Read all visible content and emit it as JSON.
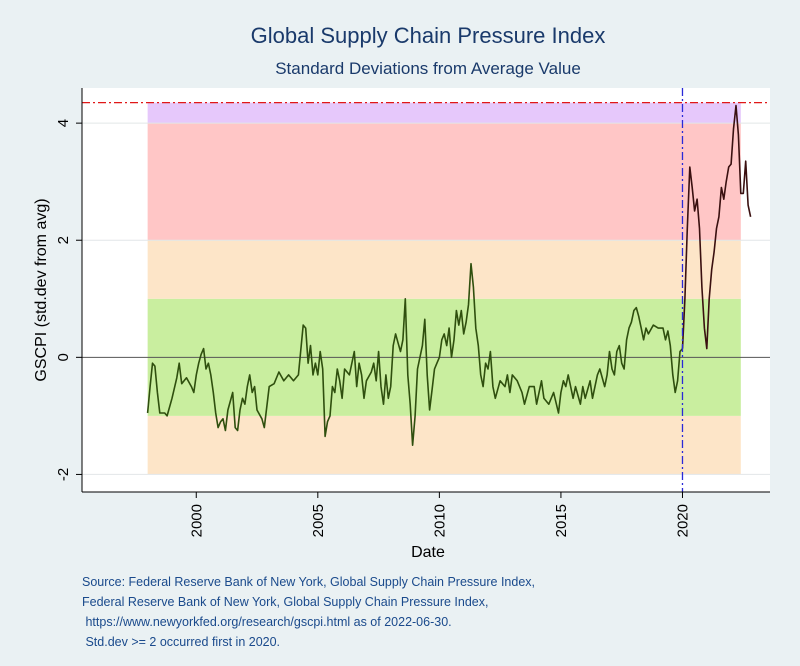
{
  "chart_data": {
    "type": "line",
    "title": "Global Supply Chain Pressure Index",
    "subtitle": "Standard Deviations from Average Value",
    "xlabel": "Date",
    "ylabel": "GSCPI (std.dev from avg)",
    "xlim": [
      1995.3,
      2023.6
    ],
    "ylim": [
      -2.3,
      4.6
    ],
    "x_ticks": [
      2000,
      2005,
      2010,
      2015,
      2020
    ],
    "y_ticks": [
      -2,
      0,
      2,
      4
    ],
    "threshold_line": 4.35,
    "event_line_year": 2020,
    "bands": [
      {
        "from": -2,
        "to": -1,
        "color": "#fde5c8"
      },
      {
        "from": -1,
        "to": 1,
        "color": "#c9ee9f"
      },
      {
        "from": 1,
        "to": 2,
        "color": "#fde5c8"
      },
      {
        "from": 2,
        "to": 4,
        "color": "#ffc6c6"
      },
      {
        "from": 4,
        "to": 4.35,
        "color": "#e6c8fb"
      }
    ],
    "band_x_range": [
      1998.0,
      2022.4
    ],
    "series": [
      {
        "color": "#2f4f0e",
        "color_after_2020": "#3a1010",
        "points": [
          [
            1998.0,
            -0.95
          ],
          [
            1998.1,
            -0.5
          ],
          [
            1998.2,
            -0.1
          ],
          [
            1998.3,
            -0.15
          ],
          [
            1998.4,
            -0.6
          ],
          [
            1998.5,
            -0.95
          ],
          [
            1998.7,
            -0.95
          ],
          [
            1998.8,
            -1.0
          ],
          [
            1999.0,
            -0.7
          ],
          [
            1999.2,
            -0.35
          ],
          [
            1999.3,
            -0.1
          ],
          [
            1999.4,
            -0.45
          ],
          [
            1999.6,
            -0.35
          ],
          [
            1999.8,
            -0.5
          ],
          [
            1999.9,
            -0.6
          ],
          [
            2000.0,
            -0.3
          ],
          [
            2000.1,
            -0.1
          ],
          [
            2000.2,
            0.05
          ],
          [
            2000.3,
            0.15
          ],
          [
            2000.4,
            -0.2
          ],
          [
            2000.5,
            -0.1
          ],
          [
            2000.6,
            -0.3
          ],
          [
            2000.7,
            -0.6
          ],
          [
            2000.8,
            -0.95
          ],
          [
            2000.9,
            -1.2
          ],
          [
            2001.0,
            -1.1
          ],
          [
            2001.1,
            -1.05
          ],
          [
            2001.2,
            -1.25
          ],
          [
            2001.3,
            -0.9
          ],
          [
            2001.5,
            -0.6
          ],
          [
            2001.6,
            -1.2
          ],
          [
            2001.7,
            -1.25
          ],
          [
            2001.8,
            -0.9
          ],
          [
            2001.9,
            -0.7
          ],
          [
            2002.0,
            -0.8
          ],
          [
            2002.1,
            -0.5
          ],
          [
            2002.2,
            -0.3
          ],
          [
            2002.3,
            -0.6
          ],
          [
            2002.4,
            -0.5
          ],
          [
            2002.5,
            -0.9
          ],
          [
            2002.7,
            -1.05
          ],
          [
            2002.8,
            -1.2
          ],
          [
            2003.0,
            -0.5
          ],
          [
            2003.2,
            -0.45
          ],
          [
            2003.4,
            -0.25
          ],
          [
            2003.6,
            -0.4
          ],
          [
            2003.8,
            -0.3
          ],
          [
            2004.0,
            -0.4
          ],
          [
            2004.2,
            -0.3
          ],
          [
            2004.4,
            0.55
          ],
          [
            2004.5,
            0.5
          ],
          [
            2004.6,
            -0.1
          ],
          [
            2004.7,
            0.2
          ],
          [
            2004.8,
            -0.3
          ],
          [
            2004.9,
            -0.1
          ],
          [
            2005.0,
            -0.3
          ],
          [
            2005.1,
            0.1
          ],
          [
            2005.2,
            -0.2
          ],
          [
            2005.3,
            -1.35
          ],
          [
            2005.4,
            -1.1
          ],
          [
            2005.5,
            -1.0
          ],
          [
            2005.6,
            -0.5
          ],
          [
            2005.7,
            -0.6
          ],
          [
            2005.8,
            -0.2
          ],
          [
            2005.9,
            -0.4
          ],
          [
            2006.0,
            -0.7
          ],
          [
            2006.1,
            -0.2
          ],
          [
            2006.3,
            -0.3
          ],
          [
            2006.5,
            0.1
          ],
          [
            2006.6,
            -0.5
          ],
          [
            2006.7,
            -0.1
          ],
          [
            2006.8,
            -0.3
          ],
          [
            2006.9,
            -0.7
          ],
          [
            2007.0,
            -0.4
          ],
          [
            2007.2,
            -0.25
          ],
          [
            2007.3,
            -0.1
          ],
          [
            2007.4,
            -0.4
          ],
          [
            2007.5,
            0.1
          ],
          [
            2007.6,
            -0.5
          ],
          [
            2007.7,
            -0.8
          ],
          [
            2007.8,
            -0.3
          ],
          [
            2007.9,
            -0.7
          ],
          [
            2008.0,
            -0.5
          ],
          [
            2008.1,
            0.2
          ],
          [
            2008.2,
            0.4
          ],
          [
            2008.3,
            0.25
          ],
          [
            2008.4,
            0.1
          ],
          [
            2008.5,
            0.3
          ],
          [
            2008.6,
            1.0
          ],
          [
            2008.7,
            -0.3
          ],
          [
            2008.8,
            -0.8
          ],
          [
            2008.9,
            -1.5
          ],
          [
            2009.0,
            -1.0
          ],
          [
            2009.1,
            -0.2
          ],
          [
            2009.3,
            0.2
          ],
          [
            2009.4,
            0.65
          ],
          [
            2009.5,
            -0.3
          ],
          [
            2009.6,
            -0.9
          ],
          [
            2009.7,
            -0.55
          ],
          [
            2009.8,
            -0.2
          ],
          [
            2009.9,
            -0.1
          ],
          [
            2010.0,
            0.0
          ],
          [
            2010.1,
            0.3
          ],
          [
            2010.2,
            0.4
          ],
          [
            2010.3,
            0.2
          ],
          [
            2010.4,
            0.5
          ],
          [
            2010.5,
            0.0
          ],
          [
            2010.6,
            0.3
          ],
          [
            2010.7,
            0.8
          ],
          [
            2010.8,
            0.55
          ],
          [
            2010.9,
            0.8
          ],
          [
            2011.0,
            0.4
          ],
          [
            2011.1,
            0.6
          ],
          [
            2011.2,
            0.9
          ],
          [
            2011.3,
            1.6
          ],
          [
            2011.4,
            1.2
          ],
          [
            2011.5,
            0.5
          ],
          [
            2011.6,
            0.2
          ],
          [
            2011.7,
            -0.3
          ],
          [
            2011.8,
            -0.5
          ],
          [
            2011.9,
            -0.1
          ],
          [
            2012.0,
            -0.2
          ],
          [
            2012.1,
            0.1
          ],
          [
            2012.2,
            -0.5
          ],
          [
            2012.3,
            -0.7
          ],
          [
            2012.5,
            -0.4
          ],
          [
            2012.7,
            -0.5
          ],
          [
            2012.8,
            -0.3
          ],
          [
            2012.9,
            -0.6
          ],
          [
            2013.0,
            -0.3
          ],
          [
            2013.2,
            -0.4
          ],
          [
            2013.4,
            -0.6
          ],
          [
            2013.5,
            -0.8
          ],
          [
            2013.7,
            -0.5
          ],
          [
            2013.9,
            -0.5
          ],
          [
            2014.0,
            -0.8
          ],
          [
            2014.2,
            -0.4
          ],
          [
            2014.3,
            -0.7
          ],
          [
            2014.5,
            -0.8
          ],
          [
            2014.7,
            -0.6
          ],
          [
            2014.9,
            -0.95
          ],
          [
            2015.0,
            -0.6
          ],
          [
            2015.1,
            -0.4
          ],
          [
            2015.2,
            -0.5
          ],
          [
            2015.3,
            -0.3
          ],
          [
            2015.5,
            -0.7
          ],
          [
            2015.6,
            -0.5
          ],
          [
            2015.8,
            -0.8
          ],
          [
            2015.9,
            -0.5
          ],
          [
            2016.0,
            -0.7
          ],
          [
            2016.2,
            -0.4
          ],
          [
            2016.3,
            -0.7
          ],
          [
            2016.5,
            -0.3
          ],
          [
            2016.6,
            -0.2
          ],
          [
            2016.8,
            -0.5
          ],
          [
            2016.9,
            -0.3
          ],
          [
            2017.0,
            0.1
          ],
          [
            2017.1,
            -0.2
          ],
          [
            2017.2,
            -0.3
          ],
          [
            2017.3,
            0.1
          ],
          [
            2017.4,
            0.2
          ],
          [
            2017.5,
            -0.1
          ],
          [
            2017.6,
            -0.2
          ],
          [
            2017.7,
            0.3
          ],
          [
            2017.8,
            0.5
          ],
          [
            2017.9,
            0.6
          ],
          [
            2018.0,
            0.8
          ],
          [
            2018.1,
            0.85
          ],
          [
            2018.2,
            0.7
          ],
          [
            2018.3,
            0.5
          ],
          [
            2018.4,
            0.3
          ],
          [
            2018.5,
            0.5
          ],
          [
            2018.6,
            0.4
          ],
          [
            2018.8,
            0.55
          ],
          [
            2019.0,
            0.5
          ],
          [
            2019.2,
            0.5
          ],
          [
            2019.3,
            0.3
          ],
          [
            2019.4,
            0.45
          ],
          [
            2019.5,
            0.2
          ],
          [
            2019.6,
            -0.3
          ],
          [
            2019.7,
            -0.6
          ],
          [
            2019.8,
            -0.4
          ],
          [
            2019.9,
            0.1
          ],
          [
            2020.0,
            0.15
          ]
        ],
        "points_after_2020": [
          [
            2020.0,
            0.15
          ],
          [
            2020.1,
            1.0
          ],
          [
            2020.2,
            2.2
          ],
          [
            2020.3,
            3.25
          ],
          [
            2020.4,
            2.9
          ],
          [
            2020.5,
            2.5
          ],
          [
            2020.6,
            2.7
          ],
          [
            2020.7,
            2.2
          ],
          [
            2020.8,
            1.2
          ],
          [
            2020.9,
            0.5
          ],
          [
            2021.0,
            0.15
          ],
          [
            2021.1,
            1.0
          ],
          [
            2021.2,
            1.5
          ],
          [
            2021.3,
            1.8
          ],
          [
            2021.4,
            2.2
          ],
          [
            2021.5,
            2.4
          ],
          [
            2021.6,
            2.9
          ],
          [
            2021.7,
            2.7
          ],
          [
            2021.8,
            3.0
          ],
          [
            2021.9,
            3.25
          ],
          [
            2022.0,
            3.3
          ],
          [
            2022.1,
            3.9
          ],
          [
            2022.2,
            4.3
          ],
          [
            2022.3,
            3.8
          ],
          [
            2022.4,
            2.8
          ],
          [
            2022.5,
            2.8
          ],
          [
            2022.6,
            3.35
          ],
          [
            2022.7,
            2.6
          ],
          [
            2022.8,
            2.4
          ]
        ]
      }
    ]
  },
  "notes": [
    "Source: Federal Reserve Bank of New York, Global Supply Chain Pressure Index,",
    "Federal Reserve Bank of New York, Global Supply Chain Pressure Index,",
    " https://www.newyorkfed.org/research/gscpi.html as of 2022-06-30.",
    " Std.dev >= 2 occurred first in 2020."
  ]
}
